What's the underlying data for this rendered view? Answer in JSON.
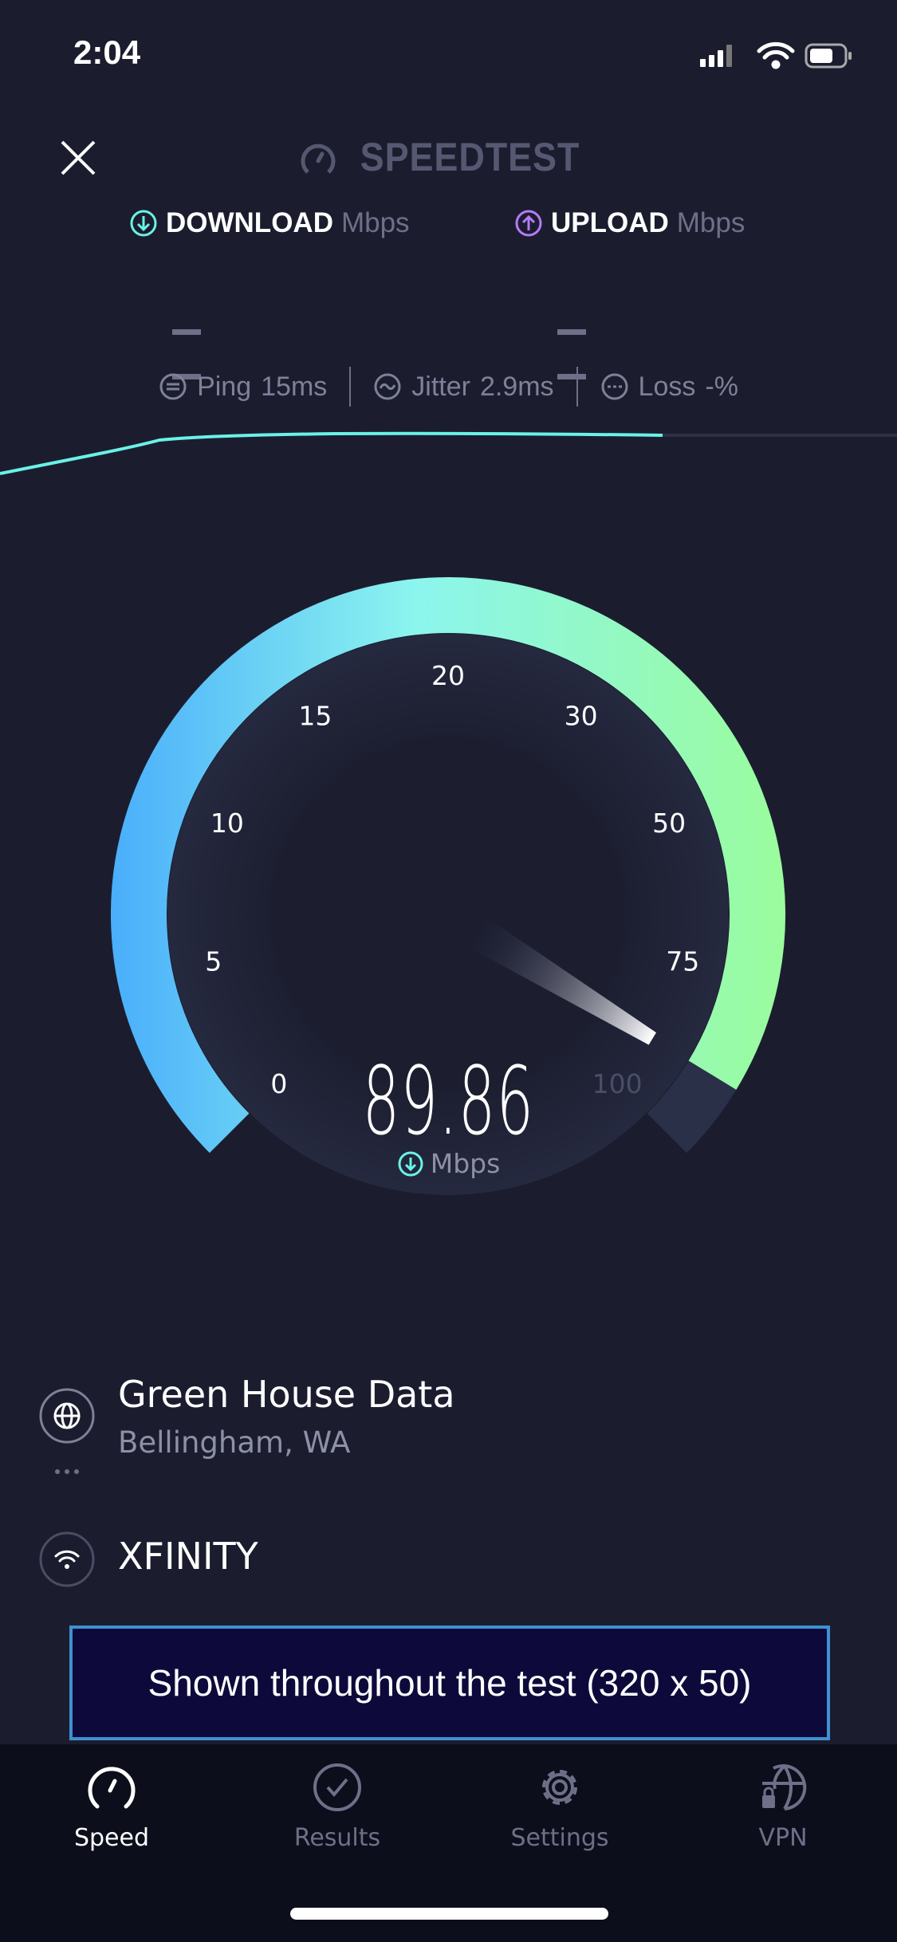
{
  "status_bar": {
    "time": "2:04"
  },
  "header": {
    "logo": "SPEEDTEST",
    "close_icon": "close-icon"
  },
  "download": {
    "label": "DOWNLOAD",
    "unit": "Mbps",
    "value": "– –",
    "color": "#6af2e6"
  },
  "upload": {
    "label": "UPLOAD",
    "unit": "Mbps",
    "value": "– –",
    "color": "#b57bf7"
  },
  "stats": {
    "ping_label": "Ping",
    "ping": "15ms",
    "jitter_label": "Jitter",
    "jitter": "2.9ms",
    "loss_label": "Loss",
    "loss": "-%"
  },
  "gauge": {
    "labels": [
      "0",
      "5",
      "10",
      "15",
      "20",
      "30",
      "50",
      "75",
      "100"
    ],
    "value": 89.86,
    "value_text": "89.86",
    "unit": "Mbps",
    "max_label": "100"
  },
  "server": {
    "name": "Green House Data",
    "location": "Bellingham, WA"
  },
  "isp": {
    "name": "XFINITY"
  },
  "ad": {
    "text": "Shown throughout the test (320 x 50)"
  },
  "tabs": [
    {
      "label": "Speed",
      "icon": "speedometer-icon",
      "active": true
    },
    {
      "label": "Results",
      "icon": "check-circle-icon"
    },
    {
      "label": "Settings",
      "icon": "gear-icon"
    },
    {
      "label": "VPN",
      "icon": "globe-lock-icon"
    }
  ],
  "colors": {
    "accent": "#6af2e6",
    "background": "#1b1d2f",
    "ad_border": "#3f91d0"
  }
}
